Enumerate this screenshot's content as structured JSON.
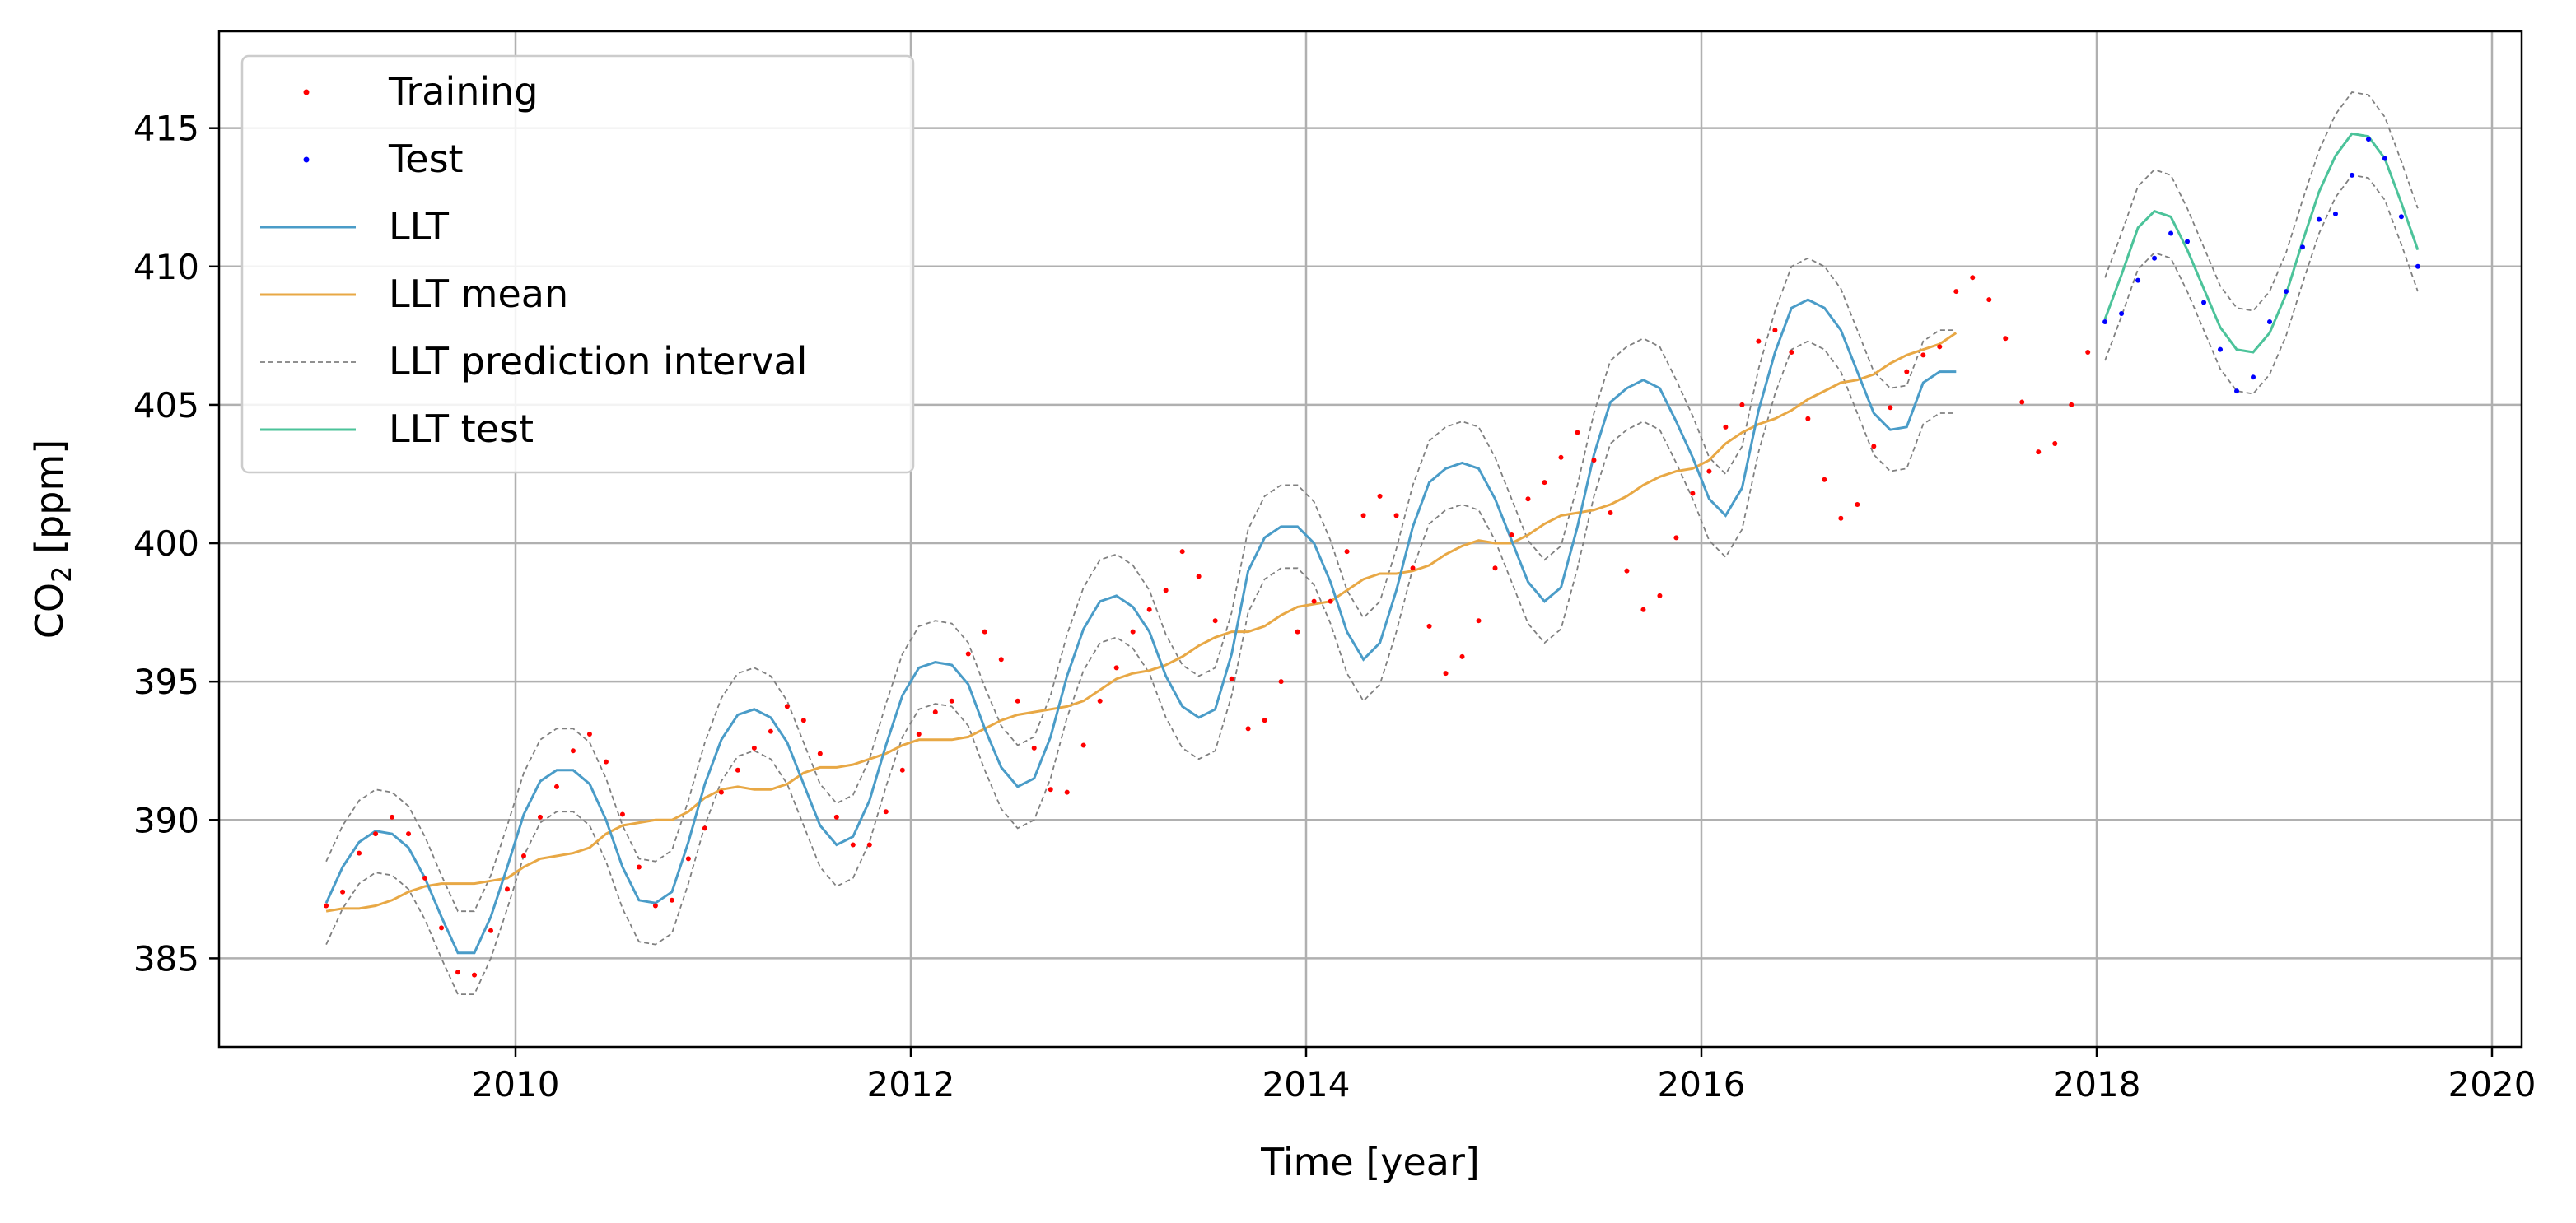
{
  "chart_data": {
    "type": "line",
    "xlabel": "Time [year]",
    "ylabel_main": "CO",
    "ylabel_sub": "2",
    "ylabel_unit": " [ppm]",
    "xlim": [
      2008.5,
      2020.15
    ],
    "ylim": [
      381.8,
      418.5
    ],
    "xticks": [
      2010,
      2012,
      2014,
      2016,
      2018,
      2020
    ],
    "yticks": [
      385,
      390,
      395,
      400,
      405,
      410,
      415
    ],
    "grid": true,
    "legend_position": "top-left",
    "colors": {
      "training": "#ff0000",
      "test": "#0000ff",
      "llt": "#4a9cc8",
      "llt_mean": "#e8a845",
      "interval": "#808080",
      "llt_test": "#4cc39a"
    },
    "legend": [
      {
        "label": "Training",
        "kind": "dot",
        "color": "#ff0000"
      },
      {
        "label": "Test",
        "kind": "dot",
        "color": "#0000ff"
      },
      {
        "label": "LLT",
        "kind": "line",
        "color": "#4a9cc8"
      },
      {
        "label": "LLT mean",
        "kind": "line",
        "color": "#e8a845"
      },
      {
        "label": "LLT prediction interval",
        "kind": "dash",
        "color": "#808080"
      },
      {
        "label": "LLT test",
        "kind": "line",
        "color": "#4cc39a"
      }
    ],
    "train_x_start": 2009.042,
    "test_x_start": 2018.042,
    "step": 0.0833,
    "series": [
      {
        "name": "Training",
        "kind": "scatter",
        "y": [
          386.9,
          387.4,
          388.8,
          389.5,
          390.1,
          389.5,
          387.9,
          386.1,
          384.5,
          384.4,
          386.0,
          387.5,
          388.7,
          390.1,
          391.2,
          392.5,
          393.1,
          392.1,
          390.2,
          388.3,
          386.9,
          387.1,
          388.6,
          389.7,
          391.0,
          391.8,
          392.6,
          393.2,
          394.1,
          393.6,
          392.4,
          390.1,
          389.1,
          389.1,
          390.3,
          391.8,
          393.1,
          393.9,
          394.3,
          396.0,
          396.8,
          395.8,
          394.3,
          392.6,
          391.1,
          391.0,
          392.7,
          394.3,
          395.5,
          396.8,
          397.6,
          398.3,
          399.7,
          398.8,
          397.2,
          395.1,
          393.3,
          393.6,
          395.0,
          396.8,
          397.9,
          397.9,
          399.7,
          401.0,
          401.7,
          401.0,
          399.1,
          397.0,
          395.3,
          395.9,
          397.2,
          399.1,
          400.3,
          401.6,
          402.2,
          403.1,
          404.0,
          403.0,
          401.1,
          399.0,
          397.6,
          398.1,
          400.2,
          401.8,
          402.6,
          404.2,
          405.0,
          407.3,
          407.7,
          406.9,
          404.5,
          402.3,
          400.9,
          401.4,
          403.5,
          404.9,
          406.2,
          406.8,
          407.1,
          409.1,
          409.6,
          408.8,
          407.4,
          405.1,
          403.3,
          403.6,
          405.0,
          406.9
        ]
      },
      {
        "name": "Test",
        "kind": "scatter",
        "y": [
          408.0,
          408.3,
          409.5,
          410.3,
          411.2,
          410.9,
          408.7,
          407.0,
          405.5,
          406.0,
          408.0,
          409.1,
          410.7,
          411.7,
          411.9,
          413.3,
          414.6,
          413.9,
          411.8,
          410.0
        ]
      },
      {
        "name": "LLT",
        "kind": "line",
        "y": [
          387.0,
          388.3,
          389.2,
          389.6,
          389.5,
          389.0,
          387.9,
          386.5,
          385.2,
          385.2,
          386.5,
          388.3,
          390.2,
          391.4,
          391.8,
          391.8,
          391.3,
          390.0,
          388.3,
          387.1,
          387.0,
          387.4,
          389.2,
          391.3,
          392.9,
          393.8,
          394.0,
          393.7,
          392.8,
          391.3,
          389.8,
          389.1,
          389.4,
          390.7,
          392.7,
          394.5,
          395.5,
          395.7,
          395.6,
          394.9,
          393.3,
          391.9,
          391.2,
          391.5,
          393.0,
          395.2,
          396.9,
          397.9,
          398.1,
          397.7,
          396.8,
          395.2,
          394.1,
          393.7,
          394.0,
          396.0,
          399.0,
          400.2,
          400.6,
          400.6,
          400.0,
          398.6,
          396.8,
          395.8,
          396.4,
          398.3,
          400.6,
          402.2,
          402.7,
          402.9,
          402.7,
          401.6,
          400.1,
          398.6,
          397.9,
          398.4,
          400.6,
          403.2,
          405.1,
          405.6,
          405.9,
          405.6,
          404.4,
          403.1,
          401.6,
          401.0,
          402.0,
          404.8,
          406.9,
          408.5,
          408.8,
          408.5,
          407.7,
          406.2,
          404.7,
          404.1,
          404.2,
          405.8,
          406.2,
          406.2
        ]
      },
      {
        "name": "LLT mean",
        "kind": "line",
        "y": [
          386.7,
          386.8,
          386.8,
          386.9,
          387.1,
          387.4,
          387.6,
          387.7,
          387.7,
          387.7,
          387.8,
          387.9,
          388.3,
          388.6,
          388.7,
          388.8,
          389.0,
          389.5,
          389.8,
          389.9,
          390.0,
          390.0,
          390.3,
          390.8,
          391.1,
          391.2,
          391.1,
          391.1,
          391.3,
          391.7,
          391.9,
          391.9,
          392.0,
          392.2,
          392.4,
          392.7,
          392.9,
          392.9,
          392.9,
          393.0,
          393.3,
          393.6,
          393.8,
          393.9,
          394.0,
          394.1,
          394.3,
          394.7,
          395.1,
          395.3,
          395.4,
          395.6,
          395.9,
          396.3,
          396.6,
          396.8,
          396.8,
          397.0,
          397.4,
          397.7,
          397.8,
          397.9,
          398.3,
          398.7,
          398.9,
          398.9,
          399.0,
          399.2,
          399.6,
          399.9,
          400.1,
          400.0,
          400.0,
          400.3,
          400.7,
          401.0,
          401.1,
          401.2,
          401.4,
          401.7,
          402.1,
          402.4,
          402.6,
          402.7,
          403.0,
          403.6,
          404.0,
          404.3,
          404.5,
          404.8,
          405.2,
          405.5,
          405.8,
          405.9,
          406.1,
          406.5,
          406.8,
          407.0,
          407.2,
          407.6
        ]
      },
      {
        "name": "LLT test",
        "kind": "line",
        "y": [
          408.1,
          409.7,
          411.4,
          412.0,
          411.8,
          410.6,
          409.2,
          407.8,
          407.0,
          406.9,
          407.6,
          409.0,
          410.9,
          412.7,
          414.0,
          414.8,
          414.7,
          413.9,
          412.3,
          410.6
        ]
      }
    ],
    "interval_halfwidth": 1.5
  }
}
